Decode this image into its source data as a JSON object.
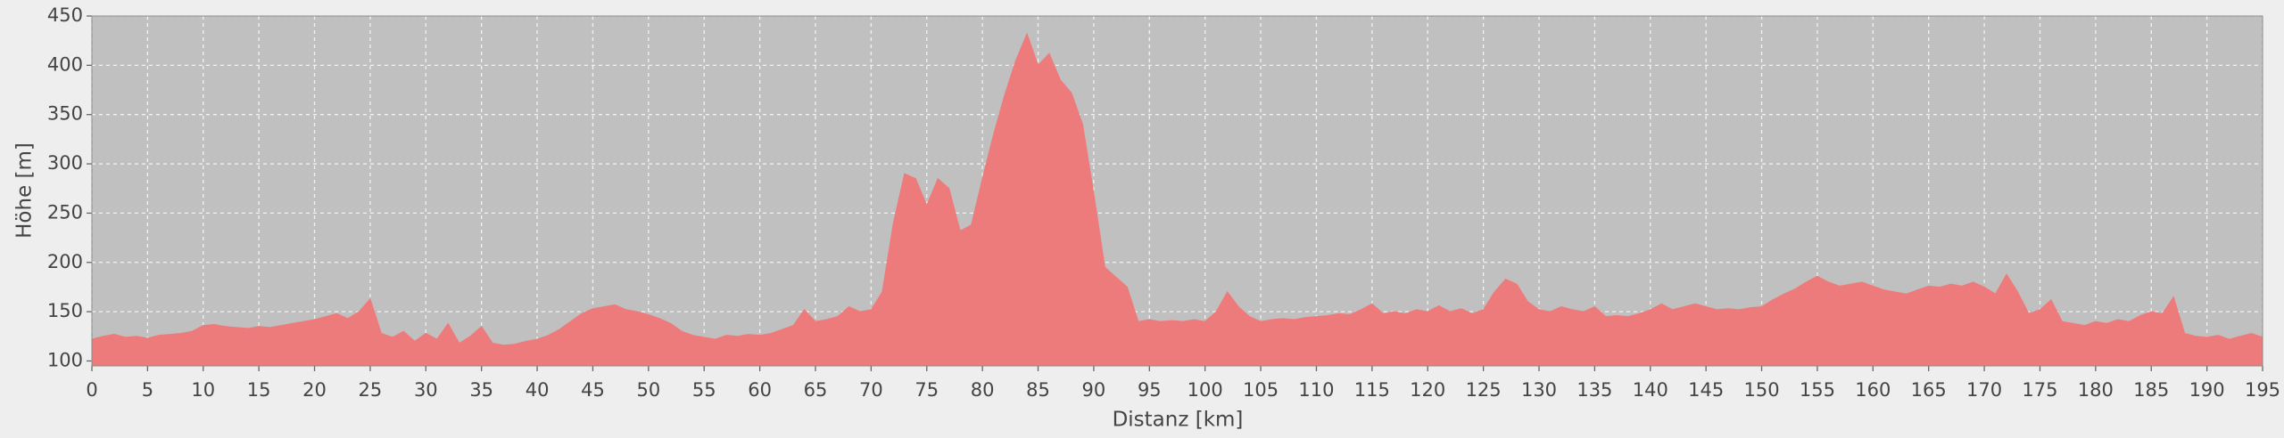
{
  "chart_data": {
    "type": "area",
    "xlabel": "Distanz [km]",
    "ylabel": "Höhe [m]",
    "xlim": [
      0,
      195
    ],
    "ylim": [
      95,
      450
    ],
    "xticks": [
      0,
      5,
      10,
      15,
      20,
      25,
      30,
      35,
      40,
      45,
      50,
      55,
      60,
      65,
      70,
      75,
      80,
      85,
      90,
      95,
      100,
      105,
      110,
      115,
      120,
      125,
      130,
      135,
      140,
      145,
      150,
      155,
      160,
      165,
      170,
      175,
      180,
      185,
      190,
      195
    ],
    "yticks": [
      100,
      150,
      200,
      250,
      300,
      350,
      400,
      450
    ],
    "grid": true,
    "color": "#ee7b7b",
    "x": [
      0,
      1,
      2,
      3,
      4,
      5,
      6,
      7,
      8,
      9,
      10,
      11,
      12,
      13,
      14,
      15,
      16,
      17,
      18,
      19,
      20,
      21,
      22,
      23,
      24,
      25,
      26,
      27,
      28,
      29,
      30,
      31,
      32,
      33,
      34,
      35,
      36,
      37,
      38,
      39,
      40,
      41,
      42,
      43,
      44,
      45,
      46,
      47,
      48,
      49,
      50,
      51,
      52,
      53,
      54,
      55,
      56,
      57,
      58,
      59,
      60,
      61,
      62,
      63,
      64,
      65,
      66,
      67,
      68,
      69,
      70,
      71,
      72,
      73,
      74,
      75,
      76,
      77,
      78,
      79,
      80,
      81,
      82,
      83,
      84,
      85,
      86,
      87,
      88,
      89,
      90,
      91,
      92,
      93,
      94,
      95,
      96,
      97,
      98,
      99,
      100,
      101,
      102,
      103,
      104,
      105,
      106,
      107,
      108,
      109,
      110,
      111,
      112,
      113,
      114,
      115,
      116,
      117,
      118,
      119,
      120,
      121,
      122,
      123,
      124,
      125,
      126,
      127,
      128,
      129,
      130,
      131,
      132,
      133,
      134,
      135,
      136,
      137,
      138,
      139,
      140,
      141,
      142,
      143,
      144,
      145,
      146,
      147,
      148,
      149,
      150,
      151,
      152,
      153,
      154,
      155,
      156,
      157,
      158,
      159,
      160,
      161,
      162,
      163,
      164,
      165,
      166,
      167,
      168,
      169,
      170,
      171,
      172,
      173,
      174,
      175,
      176,
      177,
      178,
      179,
      180,
      181,
      182,
      183,
      184,
      185,
      186,
      187,
      188,
      189,
      190,
      191,
      192,
      193,
      194,
      195
    ],
    "values": [
      122,
      125,
      127,
      124,
      125,
      123,
      126,
      127,
      128,
      130,
      136,
      137,
      135,
      134,
      133,
      135,
      134,
      136,
      138,
      140,
      142,
      145,
      148,
      143,
      150,
      163,
      128,
      124,
      130,
      120,
      128,
      122,
      138,
      118,
      125,
      135,
      118,
      116,
      117,
      120,
      122,
      126,
      132,
      140,
      148,
      153,
      155,
      157,
      152,
      150,
      147,
      143,
      138,
      130,
      126,
      124,
      122,
      126,
      125,
      127,
      126,
      128,
      132,
      136,
      152,
      140,
      142,
      145,
      155,
      150,
      152,
      170,
      240,
      290,
      285,
      258,
      285,
      275,
      232,
      238,
      285,
      330,
      370,
      405,
      432,
      400,
      412,
      385,
      372,
      340,
      270,
      195,
      185,
      175,
      140,
      142,
      140,
      141,
      140,
      142,
      140,
      150,
      170,
      155,
      145,
      140,
      142,
      143,
      142,
      144,
      145,
      146,
      148,
      147,
      152,
      158,
      148,
      150,
      148,
      152,
      150,
      156,
      150,
      153,
      148,
      152,
      170,
      183,
      178,
      160,
      152,
      150,
      155,
      152,
      150,
      155,
      145,
      146,
      145,
      148,
      152,
      158,
      152,
      155,
      158,
      155,
      152,
      153,
      152,
      154,
      155,
      162,
      168,
      173,
      180,
      186,
      180,
      176,
      178,
      180,
      176,
      172,
      170,
      168,
      172,
      176,
      175,
      178,
      176,
      180,
      175,
      168,
      188,
      170,
      148,
      152,
      162,
      140,
      138,
      136,
      140,
      138,
      142,
      140,
      146,
      150,
      148,
      165,
      128,
      125,
      124,
      126,
      122,
      125,
      128,
      124
    ]
  }
}
